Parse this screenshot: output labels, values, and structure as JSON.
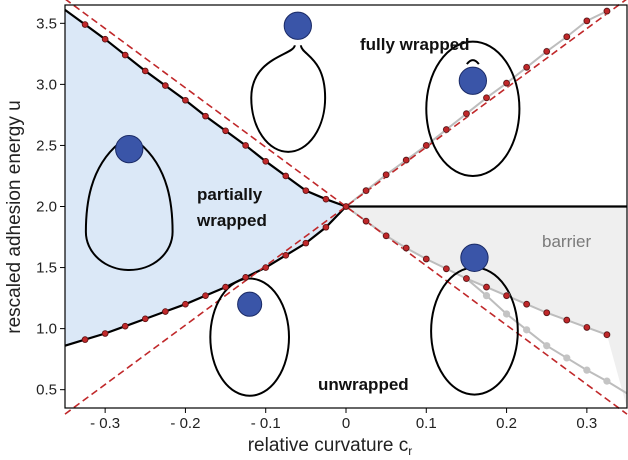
{
  "chart_data": {
    "type": "scatter",
    "xlabel": "relative curvature c",
    "xlabel_subscript": "r",
    "ylabel": "rescaled adhesion energy u",
    "xlim": [
      -0.35,
      0.35
    ],
    "ylim": [
      0.35,
      3.65
    ],
    "x_ticks": [
      "- 0.3",
      "- 0.2",
      "- 0.1",
      "0",
      "0.1",
      "0.2",
      "0.3"
    ],
    "y_ticks": [
      "0.5",
      "1.0",
      "1.5",
      "2.0",
      "2.5",
      "3.0",
      "3.5"
    ],
    "region_labels": {
      "fully_wrapped": "fully wrapped",
      "partially_wrapped_line1": "partially",
      "partially_wrapped_line2": "wrapped",
      "unwrapped": "unwrapped",
      "barrier": "barrier"
    },
    "colors": {
      "partial_region": "#dbe8f7",
      "barrier_region": "#efefef",
      "boundary_line": "#000000",
      "theory_dashed": "#c0282a",
      "red_points": "#c0282a",
      "gray_points": "#c4c4c4",
      "particle": "#3a55a8"
    },
    "series": [
      {
        "style": "black-line-with-red-dots",
        "x": [
          -0.325,
          -0.3,
          -0.275,
          -0.25,
          -0.225,
          -0.2,
          -0.175,
          -0.15,
          -0.125,
          -0.1,
          -0.075,
          -0.05,
          -0.025,
          0
        ],
        "y": [
          3.49,
          3.37,
          3.24,
          3.11,
          2.99,
          2.87,
          2.74,
          2.62,
          2.5,
          2.37,
          2.25,
          2.13,
          2.06,
          2.0
        ]
      },
      {
        "style": "black-line-with-red-dots",
        "x": [
          -0.325,
          -0.3,
          -0.275,
          -0.25,
          -0.225,
          -0.2,
          -0.175,
          -0.15,
          -0.125,
          -0.1,
          -0.075,
          -0.05,
          -0.025,
          0
        ],
        "y": [
          0.91,
          0.96,
          1.02,
          1.08,
          1.14,
          1.2,
          1.27,
          1.34,
          1.42,
          1.5,
          1.6,
          1.7,
          1.83,
          2.0
        ]
      },
      {
        "style": "gray-line-with-red-dots",
        "x": [
          0.025,
          0.05,
          0.075,
          0.1,
          0.125,
          0.15,
          0.175,
          0.2,
          0.225,
          0.25,
          0.275,
          0.3,
          0.325
        ],
        "y": [
          2.13,
          2.26,
          2.38,
          2.5,
          2.63,
          2.76,
          2.89,
          3.01,
          3.14,
          3.27,
          3.39,
          3.52,
          3.6
        ]
      },
      {
        "style": "gray-line-with-red-dots",
        "x": [
          0.025,
          0.05,
          0.075,
          0.1,
          0.125,
          0.15,
          0.175,
          0.2,
          0.225,
          0.25,
          0.275,
          0.3,
          0.325
        ],
        "y": [
          1.88,
          1.76,
          1.66,
          1.57,
          1.49,
          1.41,
          1.34,
          1.27,
          1.2,
          1.13,
          1.07,
          1.01,
          0.95
        ]
      },
      {
        "style": "gray-dots",
        "x": [
          0.175,
          0.2,
          0.225,
          0.25,
          0.275,
          0.3,
          0.325
        ],
        "y": [
          1.27,
          1.12,
          0.99,
          0.86,
          0.76,
          0.66,
          0.57
        ]
      }
    ],
    "horizontal_line": {
      "y": 2.0,
      "x_from": 0,
      "x_to": 0.35
    },
    "dashed_lines": [
      {
        "from": [
          -0.35,
          3.7
        ],
        "to": [
          0.35,
          0.3
        ]
      },
      {
        "from": [
          -0.35,
          0.3
        ],
        "to": [
          0.35,
          3.7
        ]
      }
    ],
    "insets": [
      {
        "name": "fully-wrapped-top",
        "vesicle": [
          -0.072,
          2.93,
          0.046,
          0.52
        ],
        "particle": [
          -0.06,
          3.48,
          0.017,
          0.1
        ]
      },
      {
        "name": "fully-wrapped-right",
        "vesicle": [
          0.158,
          2.8,
          0.058,
          0.55
        ],
        "particle": [
          0.158,
          3.03,
          0.017,
          0.13
        ]
      },
      {
        "name": "partially-wrapped-left",
        "vesicle": [
          -0.27,
          1.87,
          0.054,
          0.52
        ],
        "particle": [
          -0.27,
          2.47,
          0.017,
          0.13
        ]
      },
      {
        "name": "unwrapped-middle",
        "vesicle": [
          -0.12,
          0.93,
          0.049,
          0.48
        ],
        "particle": [
          -0.12,
          1.2,
          0.015,
          0.12
        ]
      },
      {
        "name": "unwrapped-right",
        "vesicle": [
          0.16,
          0.98,
          0.054,
          0.52
        ],
        "particle": [
          0.16,
          1.58,
          0.017,
          0.14
        ]
      }
    ]
  }
}
